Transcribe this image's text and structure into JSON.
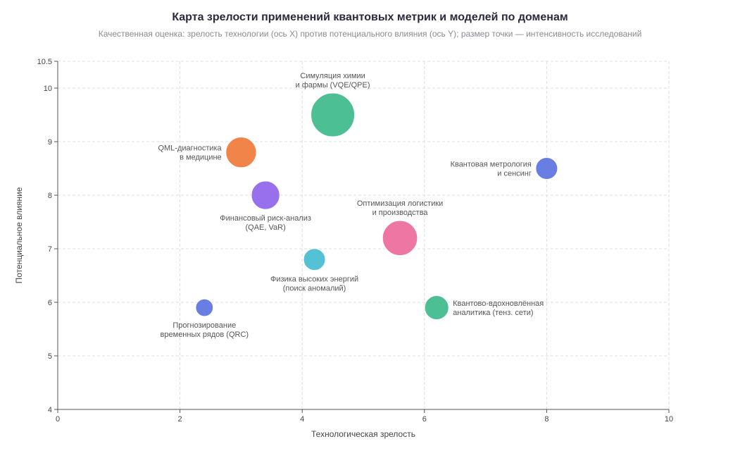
{
  "chart_data": {
    "type": "scatter",
    "title": "Карта зрелости применений квантовых метрик и моделей по доменам",
    "subtitle": "Качественная оценка: зрелость технологии (ось X) против потенциального влияния (ось Y); размер точки — интенсивность исследований",
    "xlabel": "Технологическая зрелость",
    "ylabel": "Потенциальное влияние",
    "xlim": [
      0,
      10
    ],
    "ylim": [
      4,
      10.5
    ],
    "xticks": [
      "0",
      "2",
      "4",
      "6",
      "8",
      "10"
    ],
    "yticks": [
      "4",
      "5",
      "6",
      "7",
      "8",
      "9",
      "10",
      "10.5"
    ],
    "grid": true,
    "points": [
      {
        "label": [
          "Симуляция химии",
          "и фармы (VQE/QPE)"
        ],
        "x": 4.5,
        "y": 9.5,
        "size": 10,
        "color": "#3dba8c",
        "label_pos": "top"
      },
      {
        "label": [
          "QML-диагностика",
          "в медицине"
        ],
        "x": 3.0,
        "y": 8.8,
        "size": 7,
        "color": "#ef7a3a",
        "label_pos": "left"
      },
      {
        "label": [
          "Квантовая метрология",
          "и сенсинг"
        ],
        "x": 8.0,
        "y": 8.5,
        "size": 5,
        "color": "#5b73e0",
        "label_pos": "left"
      },
      {
        "label": [
          "Финансовый риск-анализ",
          "(QAE, VaR)"
        ],
        "x": 3.4,
        "y": 8.0,
        "size": 6.5,
        "color": "#8f63ec",
        "label_pos": "bottom"
      },
      {
        "label": [
          "Оптимизация логистики",
          "и производства"
        ],
        "x": 5.6,
        "y": 7.2,
        "size": 8,
        "color": "#ec6a9a",
        "label_pos": "top"
      },
      {
        "label": [
          "Физика высоких энергий",
          "(поиск аномалий)"
        ],
        "x": 4.2,
        "y": 6.8,
        "size": 5,
        "color": "#45bdd0",
        "label_pos": "bottom"
      },
      {
        "label": [
          "Квантово-вдохновлённая",
          "аналитика (тенз. сети)"
        ],
        "x": 6.2,
        "y": 5.9,
        "size": 5.5,
        "color": "#3dba8c",
        "label_pos": "right"
      },
      {
        "label": [
          "Прогнозирование",
          "временных рядов (QRC)"
        ],
        "x": 2.4,
        "y": 5.9,
        "size": 4,
        "color": "#5b73e0",
        "label_pos": "bottom"
      }
    ]
  }
}
